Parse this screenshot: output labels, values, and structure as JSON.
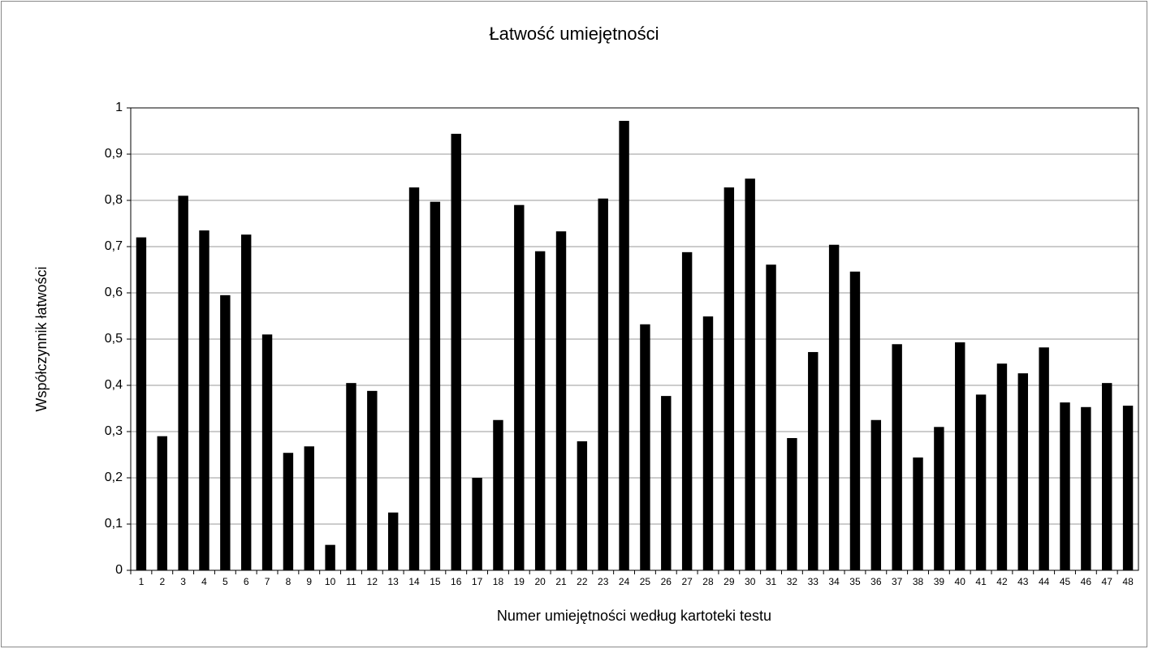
{
  "chart_data": {
    "type": "bar",
    "title": "Łatwość umiejętności",
    "x_label": "Numer umiejętności według kartoteki testu",
    "y_label": "Współczynnik łatwości",
    "categories": [
      "1",
      "2",
      "3",
      "4",
      "5",
      "6",
      "7",
      "8",
      "9",
      "10",
      "11",
      "12",
      "13",
      "14",
      "15",
      "16",
      "17",
      "18",
      "19",
      "20",
      "21",
      "22",
      "23",
      "24",
      "25",
      "26",
      "27",
      "28",
      "29",
      "30",
      "31",
      "32",
      "33",
      "34",
      "35",
      "36",
      "37",
      "38",
      "39",
      "40",
      "41",
      "42",
      "43",
      "44",
      "45",
      "46",
      "47",
      "48"
    ],
    "values": [
      0.72,
      0.29,
      0.81,
      0.735,
      0.595,
      0.726,
      0.51,
      0.254,
      0.268,
      0.055,
      0.405,
      0.388,
      0.125,
      0.828,
      0.797,
      0.944,
      0.2,
      0.325,
      0.79,
      0.69,
      0.733,
      0.279,
      0.804,
      0.972,
      0.532,
      0.377,
      0.688,
      0.549,
      0.828,
      0.847,
      0.661,
      0.286,
      0.472,
      0.704,
      0.646,
      0.325,
      0.489,
      0.244,
      0.31,
      0.493,
      0.38,
      0.447,
      0.426,
      0.482,
      0.363,
      0.353,
      0.405,
      0.356
    ],
    "color": "#000000",
    "ylim": [
      0,
      1
    ],
    "yticks": [
      0,
      {
        "value": 0.1,
        "label": "0,1"
      },
      {
        "value": 0.2,
        "label": "0,2"
      },
      {
        "value": 0.3,
        "label": "0,3"
      },
      {
        "value": 0.4,
        "label": "0,4"
      },
      {
        "value": 0.5,
        "label": "0,5"
      },
      {
        "value": 0.6,
        "label": "0,6"
      },
      {
        "value": 0.7,
        "label": "0,7"
      },
      {
        "value": 0.8,
        "label": "0,8"
      },
      {
        "value": 0.9,
        "label": "0,9"
      },
      1
    ],
    "grid": true
  }
}
